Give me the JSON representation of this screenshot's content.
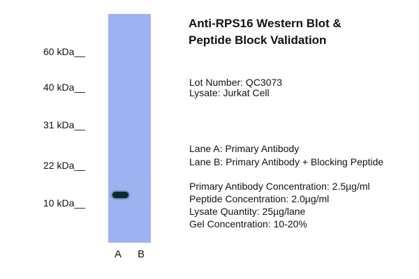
{
  "markers": [
    "60 kDa__",
    "40 kDa__",
    "31 kDa__",
    "22 kDa__",
    "10 kDa__"
  ],
  "lanes": [
    "A",
    "B"
  ],
  "title_line1": "Anti-RPS16 Western Blot &",
  "title_line2": "Peptide Block Validation",
  "lot_number": "Lot Number: QC3073",
  "lysate": "Lysate: Jurkat Cell",
  "lane_a": "Lane A: Primary Antibody",
  "lane_b": "Lane B: Primary Antibody + Blocking Peptide",
  "primary_conc": "Primary Antibody Concentration: 2.5µg/ml",
  "peptide_conc": "Peptide Concentration: 2.0µg/ml",
  "lysate_qty": "Lysate Quantity: 25µg/lane",
  "gel_conc": "Gel Concentration: 10-20%",
  "colors": {
    "membrane": "#9db2f0",
    "band": "#0e2a2a"
  }
}
